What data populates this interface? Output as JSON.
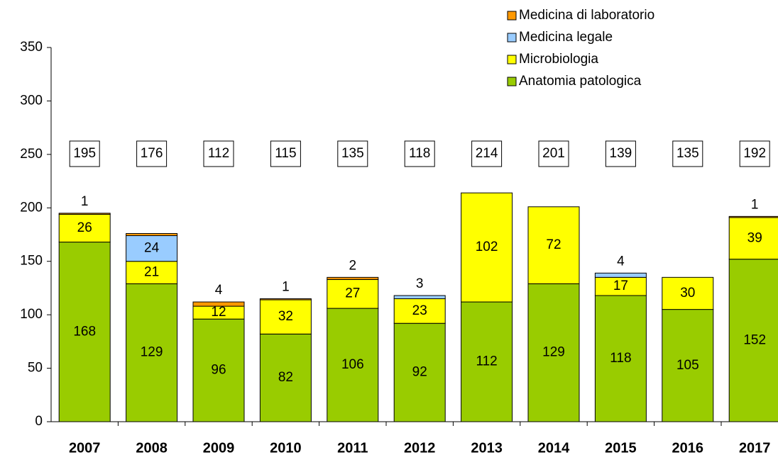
{
  "chart_data": {
    "type": "stacked_bar",
    "categories": [
      "2007",
      "2008",
      "2009",
      "2010",
      "2011",
      "2012",
      "2013",
      "2014",
      "2015",
      "2016",
      "2017"
    ],
    "series": [
      {
        "name": "Anatomia patologica",
        "color": "#99cc00",
        "values": [
          168,
          129,
          96,
          82,
          106,
          92,
          112,
          129,
          118,
          105,
          152
        ]
      },
      {
        "name": "Microbiologia",
        "color": "#ffff00",
        "values": [
          26,
          21,
          12,
          32,
          27,
          23,
          102,
          72,
          17,
          30,
          39
        ]
      },
      {
        "name": "Medicina legale",
        "color": "#99ccff",
        "values": [
          null,
          24,
          null,
          null,
          null,
          3,
          null,
          null,
          4,
          null,
          null
        ]
      },
      {
        "name": "Medicina di laboratorio",
        "color": "#ff9900",
        "values": [
          1,
          2,
          4,
          1,
          2,
          null,
          null,
          null,
          null,
          null,
          1
        ],
        "value_labels": [
          "1",
          null,
          "4",
          "1",
          "2",
          null,
          null,
          null,
          null,
          null,
          "1"
        ]
      }
    ],
    "totals": [
      195,
      176,
      112,
      115,
      135,
      118,
      214,
      201,
      139,
      135,
      192
    ],
    "ylim": [
      0,
      350
    ],
    "yticks": [
      0,
      50,
      100,
      150,
      200,
      250,
      300,
      350
    ],
    "grid": false
  }
}
